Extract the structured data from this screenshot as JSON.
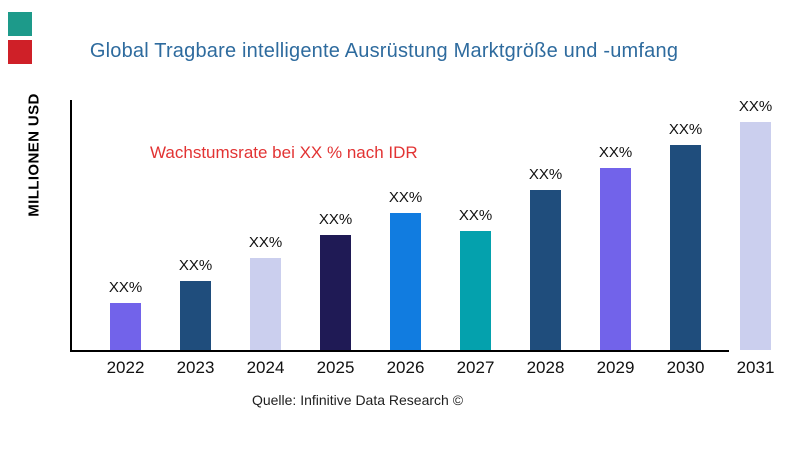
{
  "page": {
    "background": "#ffffff"
  },
  "brand_marks": [
    {
      "name": "brand-square-teal",
      "color": "#1d9a8a"
    },
    {
      "name": "brand-square-red",
      "color": "#cf2028"
    }
  ],
  "header": {
    "title": "Global Tragbare intelligente Ausrüstung Marktgröße und -umfang",
    "color": "#2e6b9e"
  },
  "annotation": {
    "text": "Wachstumsrate bei XX % nach IDR",
    "color": "#e23333"
  },
  "axes": {
    "y_label": "MILLIONEN USD",
    "axis_color": "#000000"
  },
  "footer": {
    "source": "Quelle: Infinitive Data Research ©"
  },
  "chart_data": {
    "type": "bar",
    "title": "Global Tragbare intelligente Ausrüstung Marktgröße und -umfang",
    "xlabel": "",
    "ylabel": "MILLIONEN USD",
    "categories": [
      "2022",
      "2023",
      "2024",
      "2025",
      "2026",
      "2027",
      "2028",
      "2029",
      "2030",
      "2031"
    ],
    "value_labels": [
      "XX%",
      "XX%",
      "XX%",
      "XX%",
      "XX%",
      "XX%",
      "XX%",
      "XX%",
      "XX%",
      "XX%"
    ],
    "values_relative_height": [
      47,
      69,
      92,
      115,
      137,
      119,
      160,
      182,
      205,
      228
    ],
    "bar_colors": [
      "#7263ea",
      "#1f4d7c",
      "#cbcfee",
      "#1f1a55",
      "#117ce0",
      "#04a1ad",
      "#1f4d7c",
      "#7263ea",
      "#1f4d7c",
      "#cbcfee"
    ],
    "grid": false,
    "legend": "none",
    "y_ticks": "none",
    "annotation": "Wachstumsrate bei XX % nach IDR"
  }
}
